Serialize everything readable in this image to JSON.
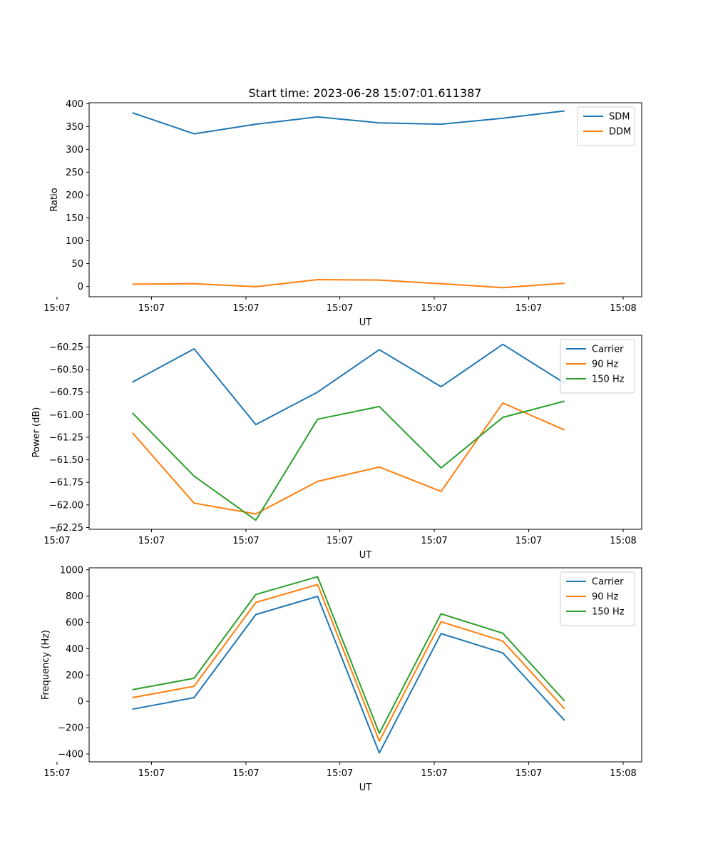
{
  "figure": {
    "title": "Start time: 2023-06-28 15:07:01.611387"
  },
  "chart_data": [
    {
      "type": "line",
      "xlabel": "UT",
      "ylabel": "Ratio",
      "x_tick_labels": [
        "15:07",
        "15:07",
        "15:07",
        "15:07",
        "15:07",
        "15:07",
        "15:08"
      ],
      "x": [
        1,
        2,
        3,
        4,
        5,
        6,
        7,
        8
      ],
      "xlim": [
        0.3,
        9.25
      ],
      "y_ticks": [
        0,
        50,
        100,
        150,
        200,
        250,
        300,
        350,
        400
      ],
      "ylim": [
        -22.5,
        402
      ],
      "grid": false,
      "legend_position": "top-right",
      "series": [
        {
          "name": "SDM",
          "color": "#1f77b4",
          "values": [
            380,
            334,
            355,
            371,
            358,
            355,
            368,
            384
          ]
        },
        {
          "name": "DDM",
          "color": "#ff7f0e",
          "values": [
            5,
            6,
            -0.5,
            15,
            14,
            6,
            -2.5,
            7
          ]
        }
      ]
    },
    {
      "type": "line",
      "xlabel": "UT",
      "ylabel": "Power (dB)",
      "x_tick_labels": [
        "15:07",
        "15:07",
        "15:07",
        "15:07",
        "15:07",
        "15:07",
        "15:08"
      ],
      "x": [
        1,
        2,
        3,
        4,
        5,
        6,
        7,
        8
      ],
      "xlim": [
        0.3,
        9.25
      ],
      "y_ticks": [
        -62.25,
        -62.0,
        -61.75,
        -61.5,
        -61.25,
        -61.0,
        -60.75,
        -60.5,
        -60.25
      ],
      "y_tick_labels": [
        "−62.25",
        "−62.00",
        "−61.75",
        "−61.50",
        "−61.25",
        "−61.00",
        "−60.75",
        "−60.50",
        "−60.25"
      ],
      "ylim": [
        -62.27,
        -60.12
      ],
      "grid": false,
      "legend_position": "top-right",
      "series": [
        {
          "name": "Carrier",
          "color": "#1f77b4",
          "values": [
            -60.64,
            -60.27,
            -61.11,
            -60.75,
            -60.28,
            -60.69,
            -60.22,
            -60.65
          ]
        },
        {
          "name": "90 Hz",
          "color": "#ff7f0e",
          "values": [
            -61.2,
            -61.98,
            -62.1,
            -61.74,
            -61.58,
            -61.85,
            -60.87,
            -61.17
          ]
        },
        {
          "name": "150 Hz",
          "color": "#2ca02c",
          "values": [
            -60.98,
            -61.68,
            -62.17,
            -61.05,
            -60.91,
            -61.59,
            -61.03,
            -60.85
          ]
        }
      ]
    },
    {
      "type": "line",
      "xlabel": "UT",
      "ylabel": "Frequency (Hz)",
      "x_tick_labels": [
        "15:07",
        "15:07",
        "15:07",
        "15:07",
        "15:07",
        "15:07",
        "15:08"
      ],
      "x": [
        1,
        2,
        3,
        4,
        5,
        6,
        7,
        8
      ],
      "xlim": [
        0.3,
        9.25
      ],
      "y_ticks": [
        -400,
        -200,
        0,
        200,
        400,
        600,
        800,
        1000
      ],
      "y_tick_labels": [
        "−400",
        "−200",
        "0",
        "200",
        "400",
        "600",
        "800",
        "1000"
      ],
      "ylim": [
        -460,
        1015
      ],
      "grid": false,
      "legend_position": "top-right",
      "series": [
        {
          "name": "Carrier",
          "color": "#1f77b4",
          "values": [
            -60,
            28,
            660,
            798,
            -393,
            515,
            368,
            -145
          ]
        },
        {
          "name": "90 Hz",
          "color": "#ff7f0e",
          "values": [
            28,
            115,
            752,
            888,
            -303,
            605,
            458,
            -57
          ]
        },
        {
          "name": "150 Hz",
          "color": "#2ca02c",
          "values": [
            88,
            175,
            812,
            948,
            -243,
            665,
            518,
            3
          ]
        }
      ]
    }
  ]
}
